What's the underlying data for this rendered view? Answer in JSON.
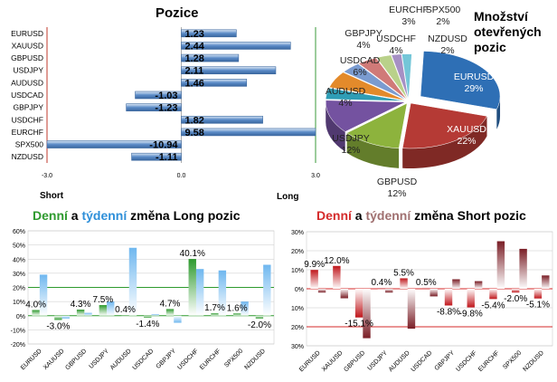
{
  "chart_data": [
    {
      "type": "bar",
      "orientation": "horizontal",
      "title": "Pozice",
      "categories": [
        "EURUSD",
        "XAUUSD",
        "GBPUSD",
        "USDJPY",
        "AUDUSD",
        "USDCAD",
        "GBPJPY",
        "USDCHF",
        "EURCHF",
        "SPX500",
        "NZDUSD"
      ],
      "values": [
        1.23,
        2.44,
        1.28,
        2.11,
        1.46,
        -1.03,
        -1.23,
        1.82,
        9.58,
        -10.94,
        -1.11
      ],
      "value_labels": [
        "1.23",
        "2.44",
        "1.28",
        "2.11",
        "1.46",
        "-1.03",
        "-1.23",
        "1.82",
        "9.58",
        "-10.94",
        "-1.11"
      ],
      "xlim": [
        -3.0,
        3.0
      ],
      "ticks": [
        "-3.0",
        "0.0",
        "3.0"
      ],
      "left_label": "Short",
      "right_label": "Long",
      "colors": {
        "bar": "#5b8bc7",
        "bar_light": "#dce8f6",
        "left_axis": "#c0392b",
        "right_axis": "#3a9a3a"
      }
    },
    {
      "type": "pie",
      "title": "Množství otevřených pozic",
      "slices": [
        {
          "name": "EURUSD",
          "label": "29%",
          "value": 29,
          "color": "#2e6fb5"
        },
        {
          "name": "XAUUSD",
          "label": "22%",
          "value": 22,
          "color": "#b53a35"
        },
        {
          "name": "GBPUSD",
          "label": "12%",
          "value": 12,
          "color": "#8db33d"
        },
        {
          "name": "USDJPY",
          "label": "12%",
          "value": 12,
          "color": "#7452a0"
        },
        {
          "name": "AUDUSD",
          "label": "4%",
          "value": 4,
          "color": "#2f9db5"
        },
        {
          "name": "USDCAD",
          "label": "6%",
          "value": 6,
          "color": "#e38a2b"
        },
        {
          "name": "GBPJPY",
          "label": "4%",
          "value": 4,
          "color": "#7a9bd0"
        },
        {
          "name": "USDCHF",
          "label": "4%",
          "value": 4,
          "color": "#d07a78"
        },
        {
          "name": "EURCHF",
          "label": "3%",
          "value": 3,
          "color": "#b9d18a"
        },
        {
          "name": "SPX500",
          "label": "2%",
          "value": 2,
          "color": "#a690c4"
        },
        {
          "name": "NZDUSD",
          "label": "2%",
          "value": 2,
          "color": "#74c6d8"
        }
      ]
    },
    {
      "type": "bar",
      "title_parts": [
        "Denní",
        " a ",
        "týdenní",
        " změna Long pozic"
      ],
      "title_colors": [
        "#2e9a2e",
        "#000000",
        "#2e8fd9",
        "#000000"
      ],
      "categories": [
        "EURUSD",
        "XAUUSD",
        "GBPUSD",
        "USDJPY",
        "AUDUSD",
        "USDCAD",
        "GBPJPY",
        "USDCHF",
        "EURCHF",
        "SPX500",
        "NZDUSD"
      ],
      "series": [
        {
          "values": [
            4.0,
            -3.0,
            4.3,
            7.5,
            0.4,
            -1.4,
            4.7,
            40.1,
            1.7,
            1.6,
            -2.0
          ],
          "color": "#2e9a2e"
        },
        {
          "values": [
            29,
            -2,
            2,
            10,
            48,
            1,
            -5,
            33,
            32,
            10,
            36
          ],
          "color": "#6fb7ef"
        }
      ],
      "data_labels": [
        "4.0%",
        "-3.0%",
        "4.3%",
        "7.5%",
        "0.4%",
        "-1.4%",
        "4.7%",
        "40.1%",
        "1.7%",
        "1.6%",
        "-2.0%"
      ],
      "ylim": [
        -20,
        60
      ],
      "yticks": [
        "-20%",
        "-10%",
        "0%",
        "10%",
        "20%",
        "30%",
        "40%",
        "50%",
        "60%"
      ],
      "ytick_values": [
        -20,
        -10,
        0,
        10,
        20,
        30,
        40,
        50,
        60
      ],
      "grid_colors": {
        "reference": "#2e9a2e",
        "other": "#c8c8c8"
      }
    },
    {
      "type": "bar",
      "title_parts": [
        "Denní",
        " a ",
        "týdenní",
        " změna Short pozic"
      ],
      "title_colors": [
        "#d42a2a",
        "#000000",
        "#a07070",
        "#000000"
      ],
      "categories": [
        "EURUSD",
        "XAUUSD",
        "GBPUSD",
        "USDJPY",
        "AUDUSD",
        "USDCAD",
        "GBPJPY",
        "USDCHF",
        "EURCHF",
        "SPX500",
        "NZDUSD"
      ],
      "series": [
        {
          "values": [
            9.9,
            12.0,
            -15.1,
            0.4,
            5.5,
            0.5,
            -8.8,
            -9.8,
            -5.4,
            -2.0,
            -5.1
          ],
          "color": "#c0161b"
        },
        {
          "values": [
            -2,
            -5,
            -26,
            -2,
            -21,
            -4,
            5,
            4,
            25,
            21,
            7
          ],
          "color": "#7a1e26"
        }
      ],
      "data_labels": [
        "9.9%",
        "12.0%",
        "-15.1%",
        "0.4%",
        "5.5%",
        "0.5%",
        "-8.8%",
        "-9.8%",
        "-5.4%",
        "-2.0%",
        "-5.1%"
      ],
      "ylim": [
        -30,
        30
      ],
      "yticks": [
        "30%",
        "20%",
        "10%",
        "0%",
        "10%",
        "20%",
        "30%"
      ],
      "ytick_values": [
        30,
        20,
        10,
        0,
        -10,
        -20,
        -30
      ],
      "grid_colors": {
        "reference": "#d42a2a",
        "other": "#c8c8c8"
      }
    }
  ]
}
